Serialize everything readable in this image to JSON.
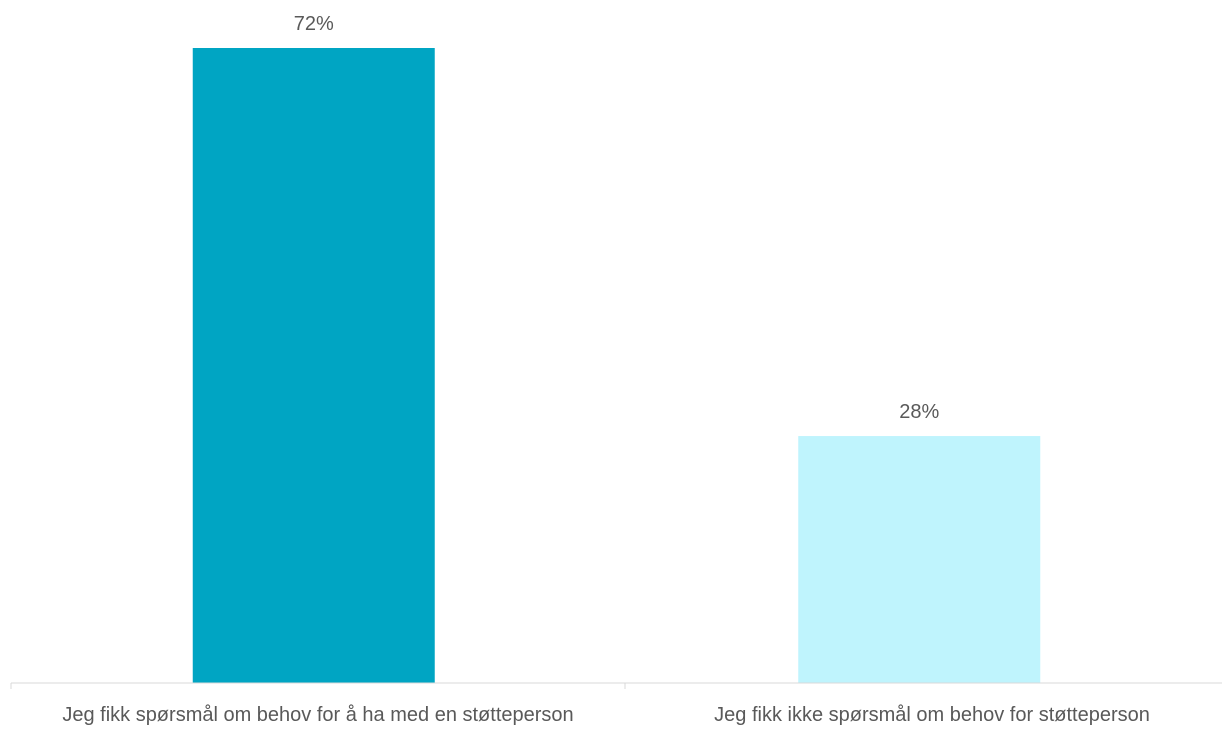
{
  "chart_data": {
    "type": "bar",
    "categories": [
      "Jeg fikk spørsmål om behov for å ha med en støtteperson",
      "Jeg fikk ikke spørsmål om behov for støtteperson"
    ],
    "values": [
      72,
      28
    ],
    "data_labels": [
      "72%",
      "28%"
    ],
    "value_unit": "%",
    "colors": [
      "#00A5C3",
      "#BFF4FD"
    ],
    "axis_color": "#D9D9D9",
    "title": "",
    "xlabel": "",
    "ylabel": "",
    "ylim": [
      0,
      72
    ],
    "grid": false,
    "legend": "none"
  }
}
